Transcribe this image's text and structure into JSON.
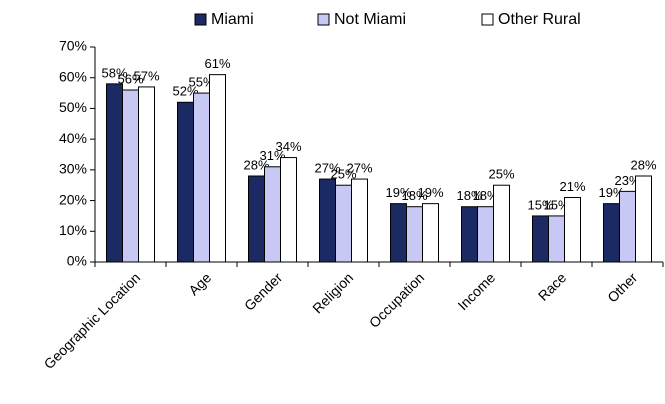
{
  "chart_data": {
    "type": "bar",
    "categories": [
      "Geographic Location",
      "Age",
      "Gender",
      "Religion",
      "Occupation",
      "Income",
      "Race",
      "Other"
    ],
    "series": [
      {
        "name": "Miami",
        "color": "#1c2a64",
        "values": [
          58,
          52,
          28,
          27,
          19,
          18,
          15,
          19
        ],
        "value_labels": [
          "58%",
          "52%",
          "28%",
          "27%",
          "19%",
          "18%",
          "15%",
          "19%"
        ]
      },
      {
        "name": "Not Miami",
        "color": "#c8c8f4",
        "values": [
          56,
          55,
          31,
          25,
          18,
          18,
          15,
          23
        ],
        "value_labels": [
          "56%",
          "55%",
          "31%",
          "25%",
          "18%",
          "18%",
          "15%",
          "23%"
        ]
      },
      {
        "name": "Other Rural",
        "color": "#ffffff",
        "values": [
          57,
          61,
          34,
          27,
          19,
          25,
          21,
          28
        ],
        "value_labels": [
          "57%",
          "61%",
          "34%",
          "27%",
          "19%",
          "25%",
          "21%",
          "28%"
        ]
      }
    ],
    "ylim": [
      0,
      70
    ],
    "yticks": [
      {
        "value": 0,
        "label": "0%"
      },
      {
        "value": 10,
        "label": "10%"
      },
      {
        "value": 20,
        "label": "20%"
      },
      {
        "value": 30,
        "label": "30%"
      },
      {
        "value": 40,
        "label": "40%"
      },
      {
        "value": 50,
        "label": "50%"
      },
      {
        "value": 60,
        "label": "60%"
      },
      {
        "value": 70,
        "label": "70%"
      }
    ],
    "legend": "top",
    "grid": false
  }
}
